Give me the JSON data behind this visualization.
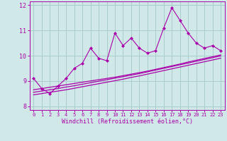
{
  "xlabel": "Windchill (Refroidissement éolien,°C)",
  "bg_color": "#d0e8e8",
  "grid_color": "#aacccc",
  "line_color": "#aa00aa",
  "x_values": [
    0,
    1,
    2,
    3,
    4,
    5,
    6,
    7,
    8,
    9,
    10,
    11,
    12,
    13,
    14,
    15,
    16,
    17,
    18,
    19,
    20,
    21,
    22,
    23
  ],
  "y_main": [
    9.1,
    8.7,
    8.5,
    8.8,
    9.1,
    9.5,
    9.7,
    10.3,
    9.9,
    9.8,
    10.9,
    10.4,
    10.7,
    10.3,
    10.1,
    10.2,
    11.1,
    11.9,
    11.4,
    10.9,
    10.5,
    10.3,
    10.4,
    10.2
  ],
  "y_smooth1": [
    8.65,
    8.7,
    8.75,
    8.8,
    8.85,
    8.9,
    8.95,
    9.0,
    9.05,
    9.1,
    9.15,
    9.21,
    9.27,
    9.33,
    9.39,
    9.46,
    9.53,
    9.6,
    9.67,
    9.75,
    9.82,
    9.89,
    9.96,
    10.03
  ],
  "y_smooth2": [
    8.55,
    8.6,
    8.65,
    8.7,
    8.76,
    8.81,
    8.87,
    8.93,
    8.99,
    9.05,
    9.11,
    9.17,
    9.23,
    9.29,
    9.36,
    9.43,
    9.5,
    9.57,
    9.64,
    9.71,
    9.78,
    9.85,
    9.92,
    9.99
  ],
  "y_smooth3": [
    8.45,
    8.5,
    8.55,
    8.6,
    8.65,
    8.71,
    8.77,
    8.83,
    8.89,
    8.95,
    9.01,
    9.07,
    9.14,
    9.2,
    9.27,
    9.34,
    9.41,
    9.48,
    9.55,
    9.62,
    9.69,
    9.76,
    9.83,
    9.9
  ],
  "ylim": [
    7.85,
    12.15
  ],
  "xlim": [
    -0.5,
    23.5
  ],
  "yticks": [
    8,
    9,
    10,
    11,
    12
  ],
  "xticks": [
    0,
    1,
    2,
    3,
    4,
    5,
    6,
    7,
    8,
    9,
    10,
    11,
    12,
    13,
    14,
    15,
    16,
    17,
    18,
    19,
    20,
    21,
    22,
    23
  ]
}
